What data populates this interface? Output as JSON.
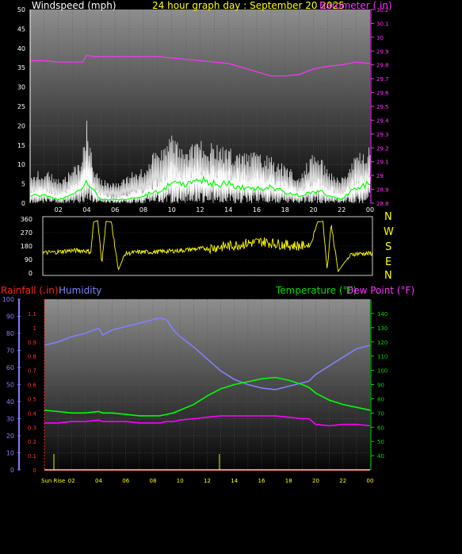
{
  "header": {
    "windspeed_label": "Windspeed (mph)",
    "title": "24 hour graph day : September 20 2025",
    "barometer_label": "Barometer ( in)"
  },
  "panel2": {
    "compass": [
      "N",
      "W",
      "S",
      "E",
      "N"
    ]
  },
  "panel3": {
    "rainfall_label": "Rainfall (.in)",
    "humidity_label": "Humidity",
    "temperature_label": "Temperature (°F)",
    "dewpoint_label": "Dew Point (°F)",
    "sunrise_label": "Sun Rise"
  },
  "colors": {
    "windspeed": "#ffffff",
    "gust": "#ffffff",
    "avg_wind": "#00ff00",
    "barometer": "#ff33ff",
    "direction": "#ffff00",
    "humidity": "#8080ff",
    "temperature": "#00ff00",
    "dewpoint": "#ff00ff",
    "rainfall": "#ff0000"
  },
  "chart_data": [
    {
      "type": "line",
      "name": "wind-and-barometer",
      "title": "24 hour graph day : September 20 2025",
      "xlabel": "",
      "x_ticks": [
        "02",
        "04",
        "06",
        "08",
        "10",
        "12",
        "14",
        "16",
        "18",
        "20",
        "22",
        "00"
      ],
      "left_axis": {
        "label": "Windspeed (mph)",
        "range": [
          0,
          50
        ],
        "ticks": [
          0,
          5,
          10,
          15,
          20,
          25,
          30,
          35,
          40,
          45,
          50
        ]
      },
      "right_axis": {
        "label": "Barometer ( in)",
        "range": [
          28.8,
          30.2
        ],
        "ticks": [
          "28.8",
          "28.9",
          "29",
          "29.1",
          "29.2",
          "29.3",
          "29.4",
          "29.5",
          "29.6",
          "29.7",
          "29.8",
          "29.9",
          "30",
          "30.1",
          "30.2"
        ]
      },
      "hours": [
        0,
        1,
        2,
        3,
        3.7,
        4,
        4.5,
        5,
        6,
        7,
        8,
        9,
        10,
        11,
        12,
        13,
        14,
        15,
        16,
        17,
        18,
        19,
        20,
        20.5,
        21,
        22,
        23,
        24
      ],
      "series": [
        {
          "name": "Barometer ( in)",
          "axis": "right",
          "values": [
            29.83,
            29.83,
            29.82,
            29.82,
            29.82,
            29.87,
            29.86,
            29.86,
            29.86,
            29.86,
            29.86,
            29.86,
            29.85,
            29.84,
            29.83,
            29.82,
            29.81,
            29.78,
            29.75,
            29.72,
            29.72,
            29.73,
            29.77,
            29.78,
            29.79,
            29.8,
            29.82,
            29.81
          ]
        },
        {
          "name": "Windspeed (mph)",
          "axis": "left",
          "values": [
            4,
            5,
            3,
            5,
            9,
            17,
            5,
            3,
            2,
            3,
            4,
            7,
            11,
            10,
            12,
            11,
            10,
            9,
            10,
            8,
            6,
            4,
            8,
            7,
            5,
            3,
            8,
            10
          ]
        },
        {
          "name": "Gust",
          "axis": "left",
          "values": [
            7,
            8,
            6,
            8,
            12,
            20,
            8,
            6,
            5,
            7,
            9,
            13,
            16,
            14,
            15,
            14,
            13,
            12,
            12,
            11,
            9,
            7,
            12,
            11,
            8,
            6,
            12,
            14
          ]
        },
        {
          "name": "Average",
          "axis": "left",
          "values": [
            2,
            2,
            1,
            2,
            4,
            6,
            3,
            1,
            1,
            1,
            2,
            3,
            5,
            5,
            6,
            5,
            5,
            4,
            4,
            4,
            3,
            2,
            3,
            3,
            2,
            1,
            4,
            5
          ]
        }
      ]
    },
    {
      "type": "line",
      "name": "wind-direction",
      "y_ticks": [
        0,
        90,
        180,
        270,
        360
      ],
      "ylim": [
        0,
        360
      ],
      "hours": [
        0,
        1,
        2,
        3,
        3.5,
        3.7,
        4,
        4.3,
        4.6,
        5,
        5.5,
        6,
        7,
        8,
        9,
        10,
        11,
        12,
        13,
        14,
        15,
        16,
        17,
        18,
        19,
        19.5,
        20,
        20.4,
        20.7,
        21,
        21.5,
        22,
        22.5,
        23,
        24
      ],
      "series": [
        {
          "name": "Direction",
          "values": [
            135,
            140,
            150,
            150,
            140,
            340,
            350,
            60,
            345,
            340,
            20,
            130,
            140,
            140,
            145,
            150,
            160,
            165,
            175,
            185,
            200,
            210,
            195,
            185,
            180,
            190,
            340,
            345,
            20,
            330,
            10,
            75,
            125,
            130,
            130
          ]
        }
      ]
    },
    {
      "type": "line",
      "name": "rain-humidity-temperature",
      "x_ticks": [
        "02",
        "04",
        "06",
        "08",
        "10",
        "12",
        "14",
        "16",
        "18",
        "20",
        "22",
        "00"
      ],
      "x_first_label": "Sun Rise",
      "humidity_axis": {
        "label": "Humidity",
        "range": [
          0,
          100
        ],
        "ticks": [
          0,
          10,
          20,
          30,
          40,
          50,
          60,
          70,
          80,
          90,
          100
        ]
      },
      "rain_axis": {
        "label": "Rainfall (.in)",
        "range": [
          0,
          1.2
        ],
        "ticks": [
          "0",
          "0.1",
          "0.2",
          "0.3",
          "0.4",
          "0.5",
          "0.6",
          "0.7",
          "0.8",
          "0.9",
          "1",
          "1.1"
        ]
      },
      "temp_axis": {
        "label": "Temperature (°F)",
        "range": [
          30,
          150
        ],
        "ticks": [
          40,
          50,
          60,
          70,
          80,
          90,
          100,
          110,
          120,
          130,
          140
        ]
      },
      "hours": [
        0,
        1,
        2,
        3,
        4,
        4.3,
        5,
        6,
        7,
        8,
        8.5,
        9,
        9.5,
        10,
        11,
        12,
        13,
        14,
        15,
        16,
        17,
        18,
        19,
        19.5,
        20,
        21,
        22,
        23,
        24
      ],
      "series": [
        {
          "name": "Humidity",
          "axis": "humidity",
          "values": [
            73,
            75,
            78,
            80,
            83,
            79,
            82,
            84,
            86,
            88,
            89,
            88,
            82,
            78,
            72,
            65,
            58,
            53,
            50,
            48,
            47,
            49,
            51,
            52,
            56,
            61,
            66,
            71,
            73
          ]
        },
        {
          "name": "Temperature (°F)",
          "axis": "temp",
          "values": [
            72,
            71,
            70,
            70,
            71,
            70,
            70,
            69,
            68,
            68,
            68,
            69,
            70,
            72,
            76,
            82,
            87,
            90,
            92,
            94,
            95,
            93,
            90,
            88,
            84,
            79,
            76,
            74,
            72
          ]
        },
        {
          "name": "Dew Point (°F)",
          "axis": "temp",
          "values": [
            63,
            63,
            64,
            64,
            65,
            64,
            64,
            64,
            63,
            63,
            63,
            64,
            64,
            65,
            66,
            67,
            68,
            68,
            68,
            68,
            68,
            67,
            66,
            66,
            62,
            61,
            62,
            62,
            61
          ]
        },
        {
          "name": "Rainfall (.in)",
          "axis": "rain",
          "values": [
            0,
            0,
            0,
            0,
            0,
            0,
            0,
            0,
            0,
            0,
            0,
            0,
            0,
            0,
            0,
            0,
            0,
            0,
            0,
            0,
            0,
            0,
            0,
            0,
            0,
            0,
            0,
            0,
            0
          ]
        }
      ],
      "markers": [
        0.7,
        12.9
      ]
    }
  ]
}
